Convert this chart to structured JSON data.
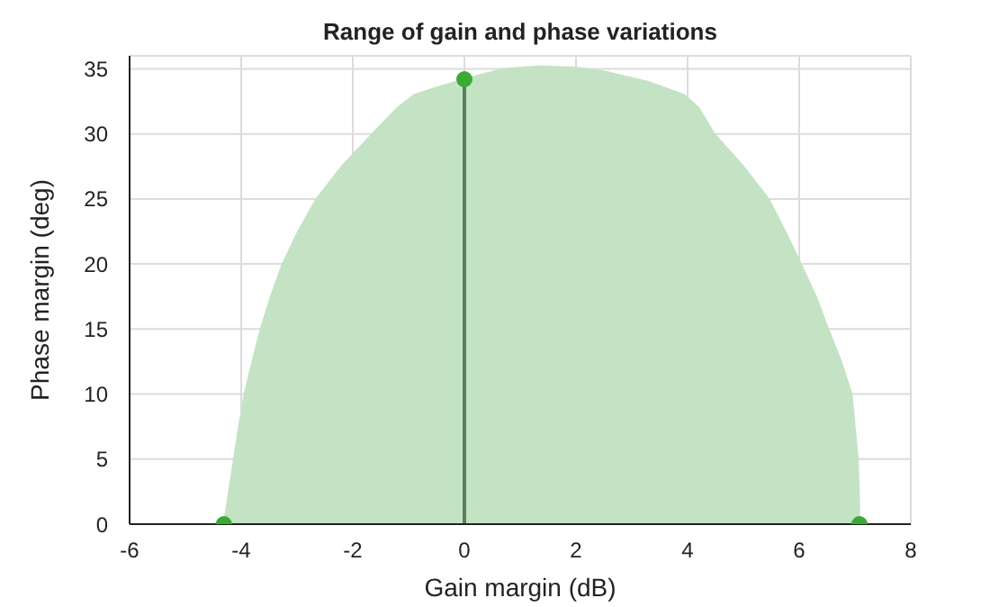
{
  "chart_data": {
    "type": "area",
    "title": "Range of gain and phase variations",
    "xlabel": "Gain margin (dB)",
    "ylabel": "Phase margin (deg)",
    "xlim": [
      -6,
      8
    ],
    "xticks": [
      -6,
      -4,
      -2,
      0,
      2,
      4,
      6,
      8
    ],
    "ylim": [
      0,
      36
    ],
    "yticks": [
      0,
      5,
      10,
      15,
      20,
      25,
      30,
      35
    ],
    "grid": true,
    "series": [
      {
        "color": "#c4e3c4",
        "x": [
          -4.31,
          -4.22,
          -4.13,
          -4.04,
          -3.94,
          -3.8,
          -3.65,
          -3.47,
          -3.26,
          -2.98,
          -2.65,
          -2.2,
          -1.65,
          -1.2,
          -0.9,
          -0.55,
          0,
          0.7,
          1.35,
          2.0,
          2.5,
          3.3,
          3.94,
          4.2,
          4.48,
          5.0,
          5.45,
          5.75,
          6.03,
          6.3,
          6.52,
          6.75,
          6.94,
          7.05,
          7.07,
          7.08
        ],
        "values": [
          0,
          2.5,
          5,
          7.5,
          10,
          12.5,
          15,
          17.5,
          20,
          22.5,
          25,
          27.5,
          30,
          32,
          33,
          33.5,
          34.2,
          35,
          35.2,
          35.1,
          34.8,
          34,
          33,
          32,
          30,
          27.5,
          25,
          22.5,
          20,
          17.5,
          15,
          12.5,
          10,
          5,
          2.5,
          0
        ]
      },
      {
        "type": "line",
        "color": "#5a7f5a",
        "x": [
          0,
          0
        ],
        "values": [
          0,
          34.2
        ]
      },
      {
        "type": "scatter",
        "color": "#3aaa35",
        "marker": "circle",
        "x": [
          -4.31,
          0,
          7.08
        ],
        "values": [
          0,
          34.2,
          0
        ]
      }
    ]
  }
}
